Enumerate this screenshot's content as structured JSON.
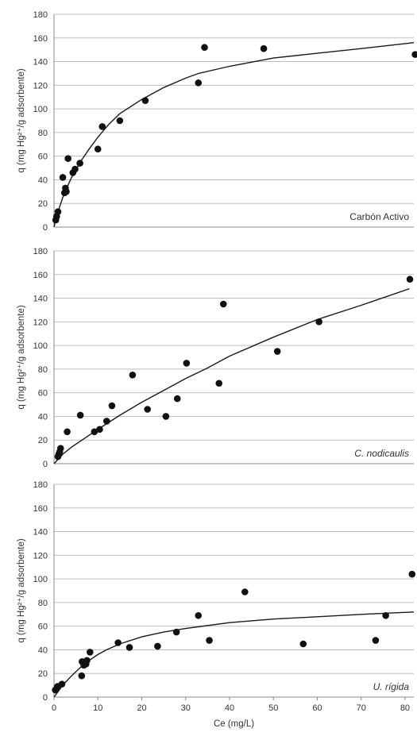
{
  "chart_data": [
    {
      "type": "scatter",
      "label": "Carbón Activo",
      "label_italic": false,
      "ylabel": "q (mg Hg²⁺/g adsorbente)",
      "ylim": [
        0,
        180
      ],
      "xlim": [
        0,
        82
      ],
      "yticks": [
        0,
        20,
        40,
        60,
        80,
        100,
        120,
        140,
        160,
        180
      ],
      "grid": "horizontal",
      "points": [
        [
          0.4,
          6
        ],
        [
          0.6,
          9
        ],
        [
          0.9,
          13
        ],
        [
          2.0,
          42
        ],
        [
          2.4,
          29
        ],
        [
          2.6,
          33
        ],
        [
          2.8,
          30
        ],
        [
          3.2,
          58
        ],
        [
          4.3,
          46
        ],
        [
          4.8,
          49
        ],
        [
          5.9,
          54
        ],
        [
          10.0,
          66
        ],
        [
          11.0,
          85
        ],
        [
          15.0,
          90
        ],
        [
          20.8,
          107
        ],
        [
          32.9,
          122
        ],
        [
          34.3,
          152
        ],
        [
          47.8,
          151
        ],
        [
          82.3,
          146
        ]
      ],
      "fit": [
        [
          0,
          0
        ],
        [
          0.5,
          8
        ],
        [
          1,
          14
        ],
        [
          2,
          25
        ],
        [
          3,
          34
        ],
        [
          4,
          42
        ],
        [
          6,
          55
        ],
        [
          8,
          66
        ],
        [
          10,
          76
        ],
        [
          12.5,
          87
        ],
        [
          15,
          96
        ],
        [
          20,
          108
        ],
        [
          25,
          118
        ],
        [
          30,
          126
        ],
        [
          33,
          130
        ],
        [
          40,
          136
        ],
        [
          50,
          143
        ],
        [
          60,
          147
        ],
        [
          70,
          151
        ],
        [
          82,
          156
        ]
      ]
    },
    {
      "type": "scatter",
      "label": "C. nodicaulis",
      "label_italic": true,
      "ylabel": "q (mg Hg²⁺/g adsorbente)",
      "ylim": [
        0,
        180
      ],
      "xlim": [
        0,
        82
      ],
      "yticks": [
        0,
        20,
        40,
        60,
        80,
        100,
        120,
        140,
        160,
        180
      ],
      "grid": "horizontal",
      "points": [
        [
          0.9,
          6
        ],
        [
          1.1,
          8
        ],
        [
          1.3,
          10
        ],
        [
          1.5,
          13
        ],
        [
          3.0,
          27
        ],
        [
          6.0,
          41
        ],
        [
          9.2,
          27
        ],
        [
          10.4,
          29
        ],
        [
          12.0,
          36
        ],
        [
          13.2,
          49
        ],
        [
          17.9,
          75
        ],
        [
          21.3,
          46
        ],
        [
          25.5,
          40
        ],
        [
          28.1,
          55
        ],
        [
          30.2,
          85
        ],
        [
          37.6,
          68
        ],
        [
          38.6,
          135
        ],
        [
          50.9,
          95
        ],
        [
          60.4,
          120
        ],
        [
          81.1,
          156
        ]
      ],
      "fit": [
        [
          0,
          0
        ],
        [
          1,
          4
        ],
        [
          2,
          8
        ],
        [
          4,
          14
        ],
        [
          6,
          19
        ],
        [
          10,
          29
        ],
        [
          15,
          41
        ],
        [
          20,
          52
        ],
        [
          25,
          62
        ],
        [
          30,
          72
        ],
        [
          35,
          81
        ],
        [
          40,
          91
        ],
        [
          50,
          107
        ],
        [
          60,
          122
        ],
        [
          70,
          134
        ],
        [
          81,
          148
        ]
      ]
    },
    {
      "type": "scatter",
      "label": "U. rígida",
      "label_italic": true,
      "ylabel": "q (mg Hg²⁺/g adsorbente)",
      "xlabel": "Ce (mg/L)",
      "ylim": [
        0,
        180
      ],
      "xlim": [
        0,
        82
      ],
      "yticks": [
        0,
        20,
        40,
        60,
        80,
        100,
        120,
        140,
        160,
        180
      ],
      "xticks": [
        0,
        10,
        20,
        30,
        40,
        50,
        60,
        70,
        80
      ],
      "grid": "horizontal",
      "points": [
        [
          0.3,
          6
        ],
        [
          0.8,
          9
        ],
        [
          1.8,
          11
        ],
        [
          6.3,
          18
        ],
        [
          6.4,
          30
        ],
        [
          6.8,
          27
        ],
        [
          7.3,
          28
        ],
        [
          7.5,
          31
        ],
        [
          8.2,
          38
        ],
        [
          14.6,
          46
        ],
        [
          17.2,
          42
        ],
        [
          23.6,
          43
        ],
        [
          27.9,
          55
        ],
        [
          32.9,
          69
        ],
        [
          35.4,
          48
        ],
        [
          43.5,
          89
        ],
        [
          56.8,
          45
        ],
        [
          73.3,
          48
        ],
        [
          75.6,
          69
        ],
        [
          81.6,
          104
        ]
      ],
      "fit": [
        [
          0,
          0
        ],
        [
          1,
          5
        ],
        [
          2,
          10
        ],
        [
          4,
          18
        ],
        [
          6,
          25
        ],
        [
          8,
          31
        ],
        [
          10,
          36
        ],
        [
          12,
          40
        ],
        [
          15,
          45
        ],
        [
          20,
          51
        ],
        [
          25,
          55
        ],
        [
          30,
          58
        ],
        [
          40,
          63
        ],
        [
          50,
          66
        ],
        [
          60,
          68
        ],
        [
          70,
          70
        ],
        [
          82,
          72
        ]
      ]
    }
  ]
}
